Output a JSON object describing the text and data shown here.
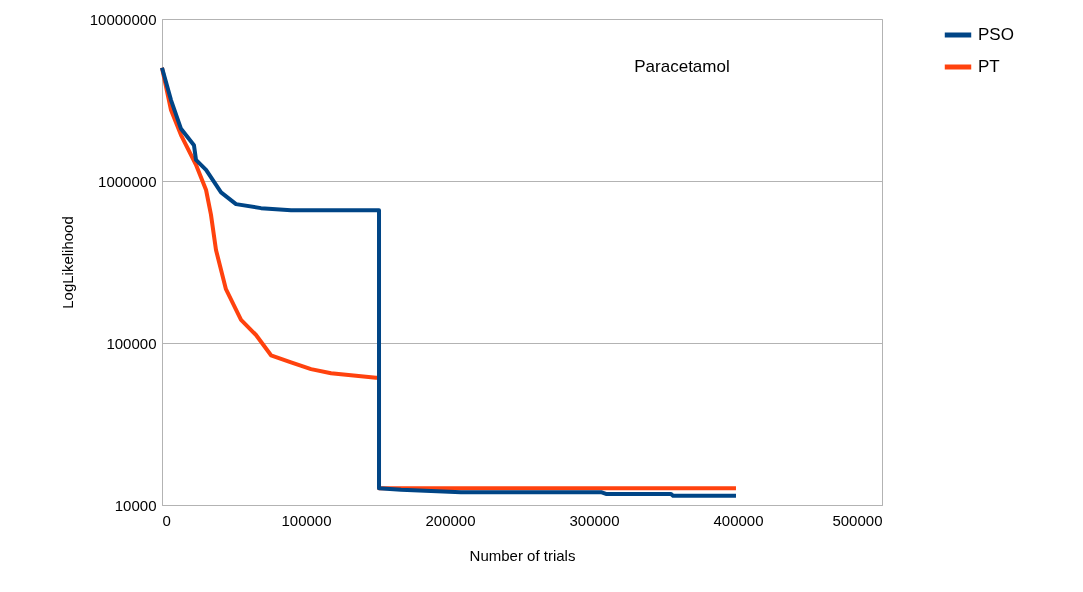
{
  "chart_data": {
    "type": "line",
    "xlabel": "Number of trials",
    "ylabel": "LogLikelihood",
    "annotations": [
      "Paracetamol"
    ],
    "log": "y",
    "grid": "y",
    "legend": "right",
    "marker": "none",
    "line_style": "solid",
    "xlim": [
      0,
      500000
    ],
    "xticks": [
      0,
      100000,
      200000,
      300000,
      400000,
      500000
    ],
    "ylim": [
      10000,
      10000000
    ],
    "yticks": [
      10000,
      100000,
      1000000,
      10000000
    ],
    "series": [
      {
        "name": "PSO",
        "color": "#004586",
        "x": [
          0,
          6250,
          13200,
          22200,
          23600,
          30600,
          41000,
          51400,
          68750,
          89600,
          150700,
          150701,
          166000,
          207600,
          304900,
          308300,
          353500,
          354900,
          398600
        ],
        "values": [
          5000000,
          3160000,
          2100000,
          1660000,
          1350000,
          1170000,
          850000,
          720000,
          680000,
          660000,
          660000,
          12700,
          12400,
          12000,
          12000,
          11700,
          11700,
          11400,
          11400
        ]
      },
      {
        "name": "PT",
        "color": "#ff420e",
        "x": [
          0,
          6250,
          13200,
          23600,
          30600,
          34000,
          37500,
          44400,
          54900,
          65300,
          75700,
          89600,
          103500,
          117400,
          148600,
          150700,
          150701,
          398600
        ],
        "values": [
          5000000,
          2740000,
          1920000,
          1260000,
          880000,
          620000,
          375000,
          215000,
          139000,
          112000,
          84000,
          76000,
          69000,
          65000,
          61000,
          61000,
          12700,
          12700
        ]
      }
    ]
  }
}
